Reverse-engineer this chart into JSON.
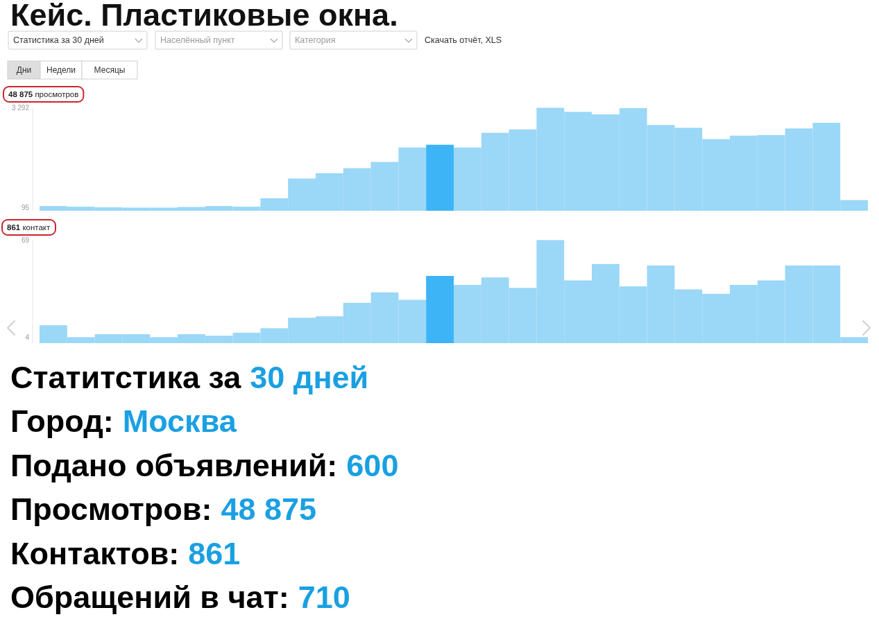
{
  "chart_data": [
    {
      "type": "other",
      "title": "Кейс. Пластиковые окна.",
      "annotations": [
        "Статистика за 30 дней",
        "Населённый пункт",
        "Категория",
        "Скачать отчёт, XLS",
        "Дни",
        "Недели",
        "Месяцы"
      ]
    },
    {
      "type": "bar",
      "title": "48 875 просмотров",
      "categories": [
        null,
        null,
        null,
        null,
        null,
        null,
        null,
        null,
        null,
        null,
        null,
        null,
        null,
        null,
        null,
        null,
        null,
        null,
        null,
        null,
        null,
        null,
        null,
        null,
        null,
        null,
        null,
        null,
        null,
        null
      ],
      "values": [
        150,
        130,
        110,
        100,
        100,
        120,
        150,
        130,
        400,
        1030,
        1200,
        1360,
        1560,
        2020,
        2110,
        2020,
        2490,
        2600,
        3290,
        3160,
        3080,
        3280,
        2740,
        2650,
        2290,
        2400,
        2420,
        2630,
        2810,
        340
      ],
      "colors": [
        "#9bd7f7",
        "#9bd7f7",
        "#9bd7f7",
        "#9bd7f7",
        "#9bd7f7",
        "#9bd7f7",
        "#9bd7f7",
        "#9bd7f7",
        "#9bd7f7",
        "#9bd7f7",
        "#9bd7f7",
        "#9bd7f7",
        "#9bd7f7",
        "#9bd7f7",
        "#3db4f5",
        "#9bd7f7",
        "#9bd7f7",
        "#9bd7f7",
        "#9bd7f7",
        "#9bd7f7",
        "#9bd7f7",
        "#9bd7f7",
        "#9bd7f7",
        "#9bd7f7",
        "#9bd7f7",
        "#9bd7f7",
        "#9bd7f7",
        "#9bd7f7",
        "#9bd7f7",
        "#9bd7f7"
      ],
      "ylim": [
        0,
        3292
      ],
      "yticks": [
        {
          "value": 3292,
          "label": "3 292"
        },
        95
      ],
      "tick_labels": "y"
    },
    {
      "type": "bar",
      "title": "861 контакт",
      "categories": [
        null,
        null,
        null,
        null,
        null,
        null,
        null,
        null,
        null,
        null,
        null,
        null,
        null,
        null,
        null,
        null,
        null,
        null,
        null,
        null,
        null,
        null,
        null,
        null,
        null,
        null,
        null,
        null,
        null,
        null
      ],
      "values": [
        12,
        4,
        6,
        6,
        4,
        6,
        5,
        7,
        10,
        17,
        18,
        27,
        34,
        29,
        45,
        39,
        44,
        37,
        69,
        42,
        53,
        38,
        52,
        36,
        33,
        39,
        42,
        52,
        52,
        4
      ],
      "colors": [
        "#9bd7f7",
        "#9bd7f7",
        "#9bd7f7",
        "#9bd7f7",
        "#9bd7f7",
        "#9bd7f7",
        "#9bd7f7",
        "#9bd7f7",
        "#9bd7f7",
        "#9bd7f7",
        "#9bd7f7",
        "#9bd7f7",
        "#9bd7f7",
        "#9bd7f7",
        "#3db4f5",
        "#9bd7f7",
        "#9bd7f7",
        "#9bd7f7",
        "#9bd7f7",
        "#9bd7f7",
        "#9bd7f7",
        "#9bd7f7",
        "#9bd7f7",
        "#9bd7f7",
        "#9bd7f7",
        "#9bd7f7",
        "#9bd7f7",
        "#9bd7f7",
        "#9bd7f7",
        "#9bd7f7"
      ],
      "ylim": [
        0,
        69
      ],
      "yticks": [
        69,
        4
      ],
      "tick_labels": "y"
    },
    {
      "type": "other",
      "annotations": [
        "Статитстика за",
        "30 дней",
        "Город:",
        "Москва",
        "Подано объявлений:",
        "600",
        "Просмотров:",
        "48 875",
        "Контактов:",
        "861",
        "Обращений в чат:",
        "710"
      ]
    }
  ]
}
